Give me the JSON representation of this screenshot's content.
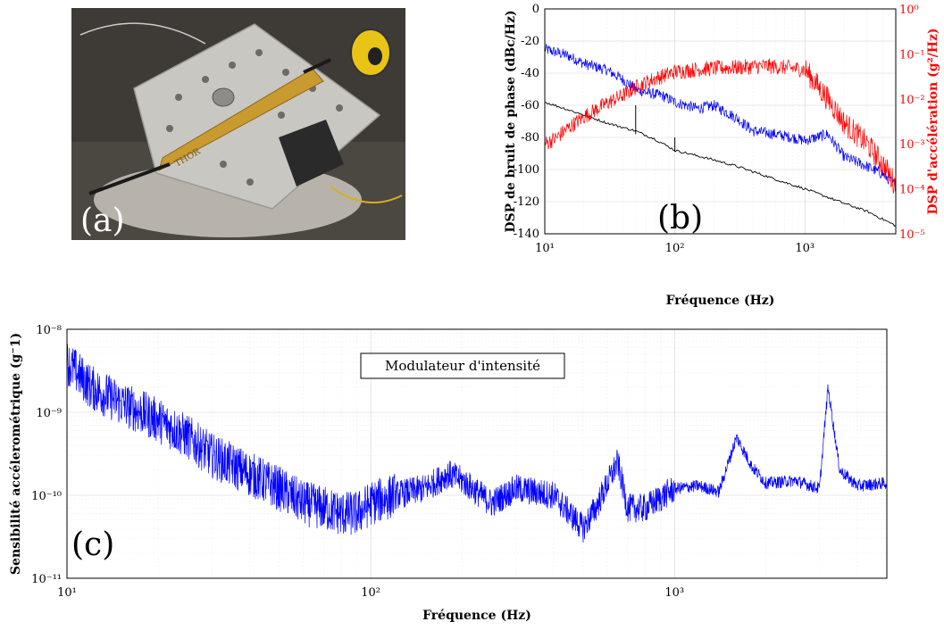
{
  "panel_a": {
    "label": "(a)",
    "plate_text": "THOR"
  },
  "chart_data": [
    {
      "id": "b",
      "type": "line",
      "panel_label": "(b)",
      "xlabel": "Fréquence (Hz)",
      "ylabel": "DSP de bruit de phase (dBc/Hz)",
      "ylabel_right": "DSP d'accélération (g²/Hz)",
      "x_scale": "log",
      "xlim": [
        10,
        5000
      ],
      "ylim": [
        -140,
        0
      ],
      "ylim_right": [
        1e-05,
        1
      ],
      "x_ticks": [
        "10¹",
        "10²",
        "10³"
      ],
      "y_ticks": [
        "0",
        "-20",
        "-40",
        "-60",
        "-80",
        "-100",
        "-120",
        "-140"
      ],
      "y_right_ticks": [
        "10⁰",
        "10⁻¹",
        "10⁻²",
        "10⁻³",
        "10⁻⁴",
        "10⁻⁵"
      ],
      "grid": true,
      "series": [
        {
          "color": "#0000ff",
          "axis": "left",
          "x": [
            10,
            15,
            20,
            30,
            40,
            50,
            60,
            80,
            100,
            150,
            200,
            300,
            400,
            600,
            800,
            1000,
            1500,
            2000,
            3000,
            4000,
            5000
          ],
          "y": [
            -25,
            -29,
            -34,
            -38,
            -44,
            -50,
            -52,
            -54,
            -58,
            -62,
            -60,
            -68,
            -76,
            -78,
            -80,
            -82,
            -78,
            -92,
            -98,
            -103,
            -110
          ]
        },
        {
          "color": "#000000",
          "axis": "left",
          "x": [
            10,
            20,
            30,
            50,
            70,
            100,
            200,
            300,
            500,
            700,
            1000,
            2000,
            3000,
            5000
          ],
          "y": [
            -58,
            -66,
            -71,
            -76,
            -81,
            -88,
            -94,
            -98,
            -104,
            -108,
            -112,
            -121,
            -126,
            -135
          ]
        },
        {
          "color": "#ff0000",
          "axis": "right",
          "x": [
            10,
            12,
            15,
            20,
            30,
            40,
            50,
            70,
            100,
            150,
            200,
            300,
            400,
            500,
            700,
            1000,
            1500,
            2000,
            3000,
            4000,
            5000
          ],
          "y": [
            0.001,
            0.0013,
            0.0022,
            0.004,
            0.008,
            0.012,
            0.018,
            0.028,
            0.04,
            0.045,
            0.048,
            0.05,
            0.052,
            0.054,
            0.05,
            0.045,
            0.01,
            0.003,
            0.001,
            0.00035,
            0.00012
          ]
        }
      ]
    },
    {
      "id": "c",
      "type": "line",
      "panel_label": "(c)",
      "xlabel": "Fréquence (Hz)",
      "ylabel": "Sensibilité accélerométrique (g⁻1)",
      "annotation": "Modulateur d'intensité",
      "x_scale": "log",
      "y_scale": "log",
      "xlim": [
        10,
        5000
      ],
      "ylim": [
        1e-11,
        1e-08
      ],
      "x_ticks": [
        "10¹",
        "10²",
        "10³"
      ],
      "y_ticks": [
        "10⁻⁸",
        "10⁻⁹",
        "10⁻¹⁰",
        "10⁻¹¹"
      ],
      "grid": true,
      "series": [
        {
          "color": "#0000ff",
          "x": [
            10,
            12,
            15,
            20,
            25,
            30,
            40,
            50,
            60,
            70,
            80,
            90,
            100,
            120,
            150,
            180,
            200,
            250,
            300,
            400,
            500,
            550,
            650,
            700,
            800,
            1000,
            1200,
            1400,
            1600,
            1800,
            2000,
            2500,
            3000,
            3200,
            3500,
            4000,
            5000
          ],
          "y": [
            4e-09,
            2e-09,
            1.3e-09,
            8e-10,
            5e-10,
            3e-10,
            1.8e-10,
            1.2e-10,
            8e-11,
            7e-11,
            6e-11,
            6e-11,
            8e-11,
            1e-10,
            1.2e-10,
            1.8e-10,
            1.5e-10,
            8e-11,
            1.2e-10,
            1e-10,
            4e-11,
            7e-11,
            2.5e-10,
            7e-11,
            7e-11,
            1.2e-10,
            1.3e-10,
            1.1e-10,
            5e-10,
            2.2e-10,
            1.4e-10,
            1.5e-10,
            1.2e-10,
            2e-09,
            2e-10,
            1.3e-10,
            1.4e-10
          ]
        }
      ]
    }
  ]
}
